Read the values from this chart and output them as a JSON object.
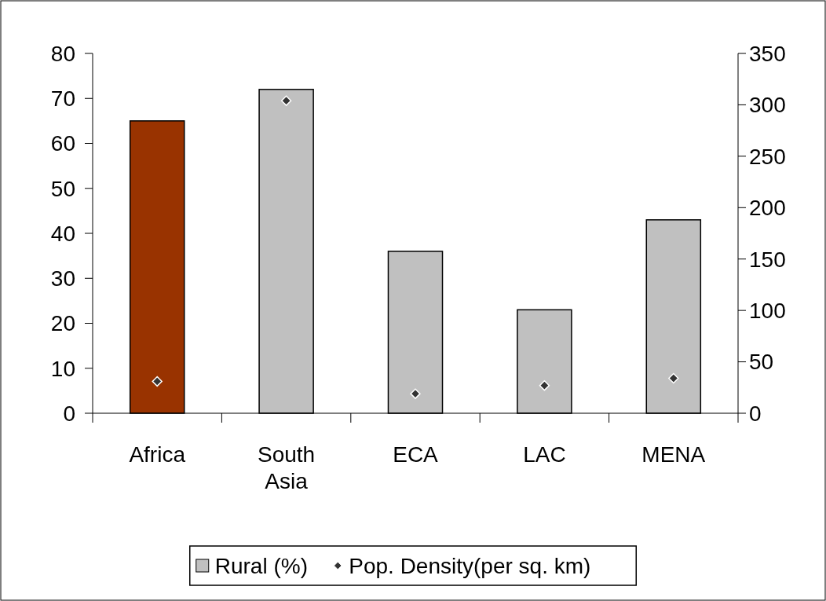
{
  "chart_data": {
    "type": "bar",
    "categories": [
      "Africa",
      "South Asia",
      "ECA",
      "LAC",
      "MENA"
    ],
    "series": [
      {
        "name": "Rural (%)",
        "color": "#c0c0c0",
        "colors": [
          "#993300",
          "#c0c0c0",
          "#c0c0c0",
          "#c0c0c0",
          "#c0c0c0"
        ],
        "values": [
          65,
          72,
          36,
          23,
          43
        ]
      },
      {
        "name": "Pop. Density(per sq. km)",
        "type": "scatter",
        "axis": "y2",
        "color": "#333333",
        "marker": "diamond",
        "values": [
          31,
          304,
          19,
          27,
          34
        ]
      }
    ],
    "ylim": [
      0,
      80
    ],
    "yticks": [
      0,
      10,
      20,
      30,
      40,
      50,
      60,
      70,
      80
    ],
    "y2lim": [
      0,
      350
    ],
    "y2ticks": [
      0,
      50,
      100,
      150,
      200,
      250,
      300,
      350
    ],
    "grid": false,
    "legend": "bottom"
  }
}
